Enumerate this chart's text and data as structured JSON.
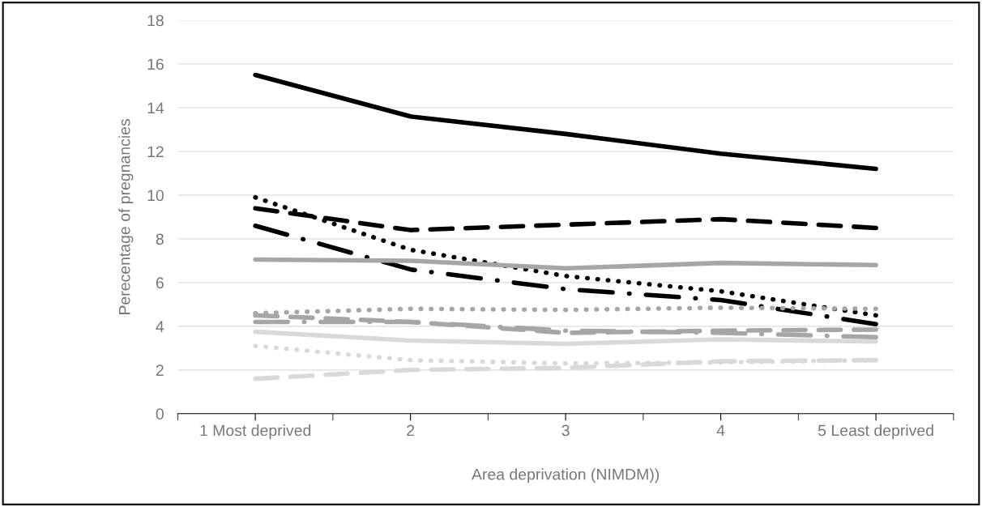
{
  "chart_data": {
    "type": "line",
    "xlabel": "Area deprivation (NIMDM))",
    "ylabel": "Perecentage of pregnancies",
    "categories": [
      "1 Most deprived",
      "2",
      "3",
      "4",
      "5 Least deprived"
    ],
    "ylim": [
      0,
      18
    ],
    "yticks": [
      0,
      2,
      4,
      6,
      8,
      10,
      12,
      14,
      16,
      18
    ],
    "grid": "y",
    "legend": false,
    "marker": "none",
    "series": [
      {
        "color": "#000000",
        "line_style": "solid",
        "values": [
          15.5,
          13.6,
          12.8,
          11.9,
          11.2
        ]
      },
      {
        "color": "#000000",
        "line_style": "dashed",
        "values": [
          9.4,
          8.4,
          8.65,
          8.9,
          8.5
        ]
      },
      {
        "color": "#000000",
        "line_style": "dotted",
        "values": [
          9.9,
          7.5,
          6.3,
          5.6,
          4.5
        ]
      },
      {
        "color": "#000000",
        "line_style": "dashdot",
        "values": [
          8.6,
          6.6,
          5.7,
          5.2,
          4.1
        ]
      },
      {
        "color": "#a6a6a6",
        "line_style": "solid",
        "values": [
          7.05,
          7.0,
          6.65,
          6.9,
          6.8
        ]
      },
      {
        "color": "#a6a6a6",
        "line_style": "dotted",
        "values": [
          4.6,
          4.8,
          4.75,
          4.85,
          4.8
        ]
      },
      {
        "color": "#a6a6a6",
        "line_style": "dashed",
        "values": [
          4.5,
          4.2,
          3.7,
          3.8,
          3.85
        ]
      },
      {
        "color": "#a6a6a6",
        "line_style": "dashdot",
        "values": [
          4.2,
          4.2,
          3.8,
          3.7,
          3.5
        ]
      },
      {
        "color": "#d9d9d9",
        "line_style": "solid",
        "values": [
          3.75,
          3.35,
          3.2,
          3.4,
          3.3
        ]
      },
      {
        "color": "#d9d9d9",
        "line_style": "dotted",
        "values": [
          3.1,
          2.45,
          2.3,
          2.35,
          2.45
        ]
      },
      {
        "color": "#d9d9d9",
        "line_style": "dashed",
        "values": [
          1.6,
          2.0,
          2.1,
          2.4,
          2.45
        ]
      }
    ]
  }
}
